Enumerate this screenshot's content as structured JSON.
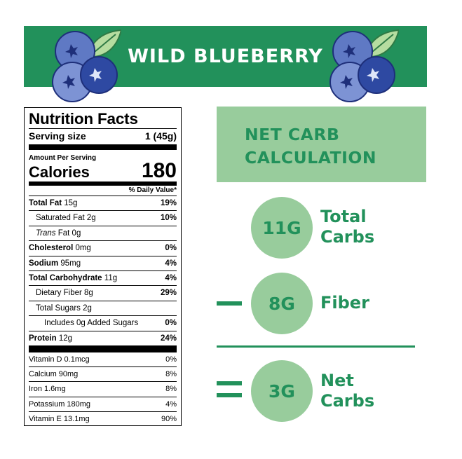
{
  "banner": {
    "title": "WILD BLUEBERRY",
    "color": "#22915b"
  },
  "nutrition": {
    "title": "Nutrition Facts",
    "serving_label": "Serving size",
    "serving_value": "1 (45g)",
    "amount_label": "Amount Per Serving",
    "calories_label": "Calories",
    "calories_value": "180",
    "dv_header": "% Daily Value*",
    "nutrients": [
      {
        "name": "Total Fat",
        "amount": " 15g",
        "pct": "19%"
      },
      {
        "name": "Saturated Fat",
        "amount": " 2g",
        "pct": "10%"
      },
      {
        "name": "Trans",
        "amount": " Fat 0g",
        "pct": ""
      },
      {
        "name": "Cholesterol",
        "amount": " 0mg",
        "pct": "0%"
      },
      {
        "name": "Sodium",
        "amount": " 95mg",
        "pct": "4%"
      },
      {
        "name": "Total Carbohydrate",
        "amount": " 11g",
        "pct": "4%"
      },
      {
        "name": "Dietary Fiber",
        "amount": " 8g",
        "pct": "29%"
      },
      {
        "name": "Total Sugars",
        "amount": " 2g",
        "pct": ""
      },
      {
        "name": "Includes 0g Added Sugars",
        "amount": "",
        "pct": "0%"
      },
      {
        "name": "Protein",
        "amount": " 12g",
        "pct": "24%"
      }
    ],
    "vitamins": [
      {
        "name": "Vitamin D 0.1mcg",
        "pct": "0%"
      },
      {
        "name": "Calcium 90mg",
        "pct": "8%"
      },
      {
        "name": "Iron 1.6mg",
        "pct": "8%"
      },
      {
        "name": "Potassium 180mg",
        "pct": "4%"
      },
      {
        "name": "Vitamin E 13.1mg",
        "pct": "90%"
      }
    ]
  },
  "calc": {
    "title_line1": "NET CARB",
    "title_line2": "CALCULATION",
    "total": {
      "value": "11G",
      "label1": "Total",
      "label2": "Carbs"
    },
    "fiber": {
      "value": "8G",
      "label1": "Fiber"
    },
    "net": {
      "value": "3G",
      "label1": "Net",
      "label2": "Carbs"
    }
  }
}
